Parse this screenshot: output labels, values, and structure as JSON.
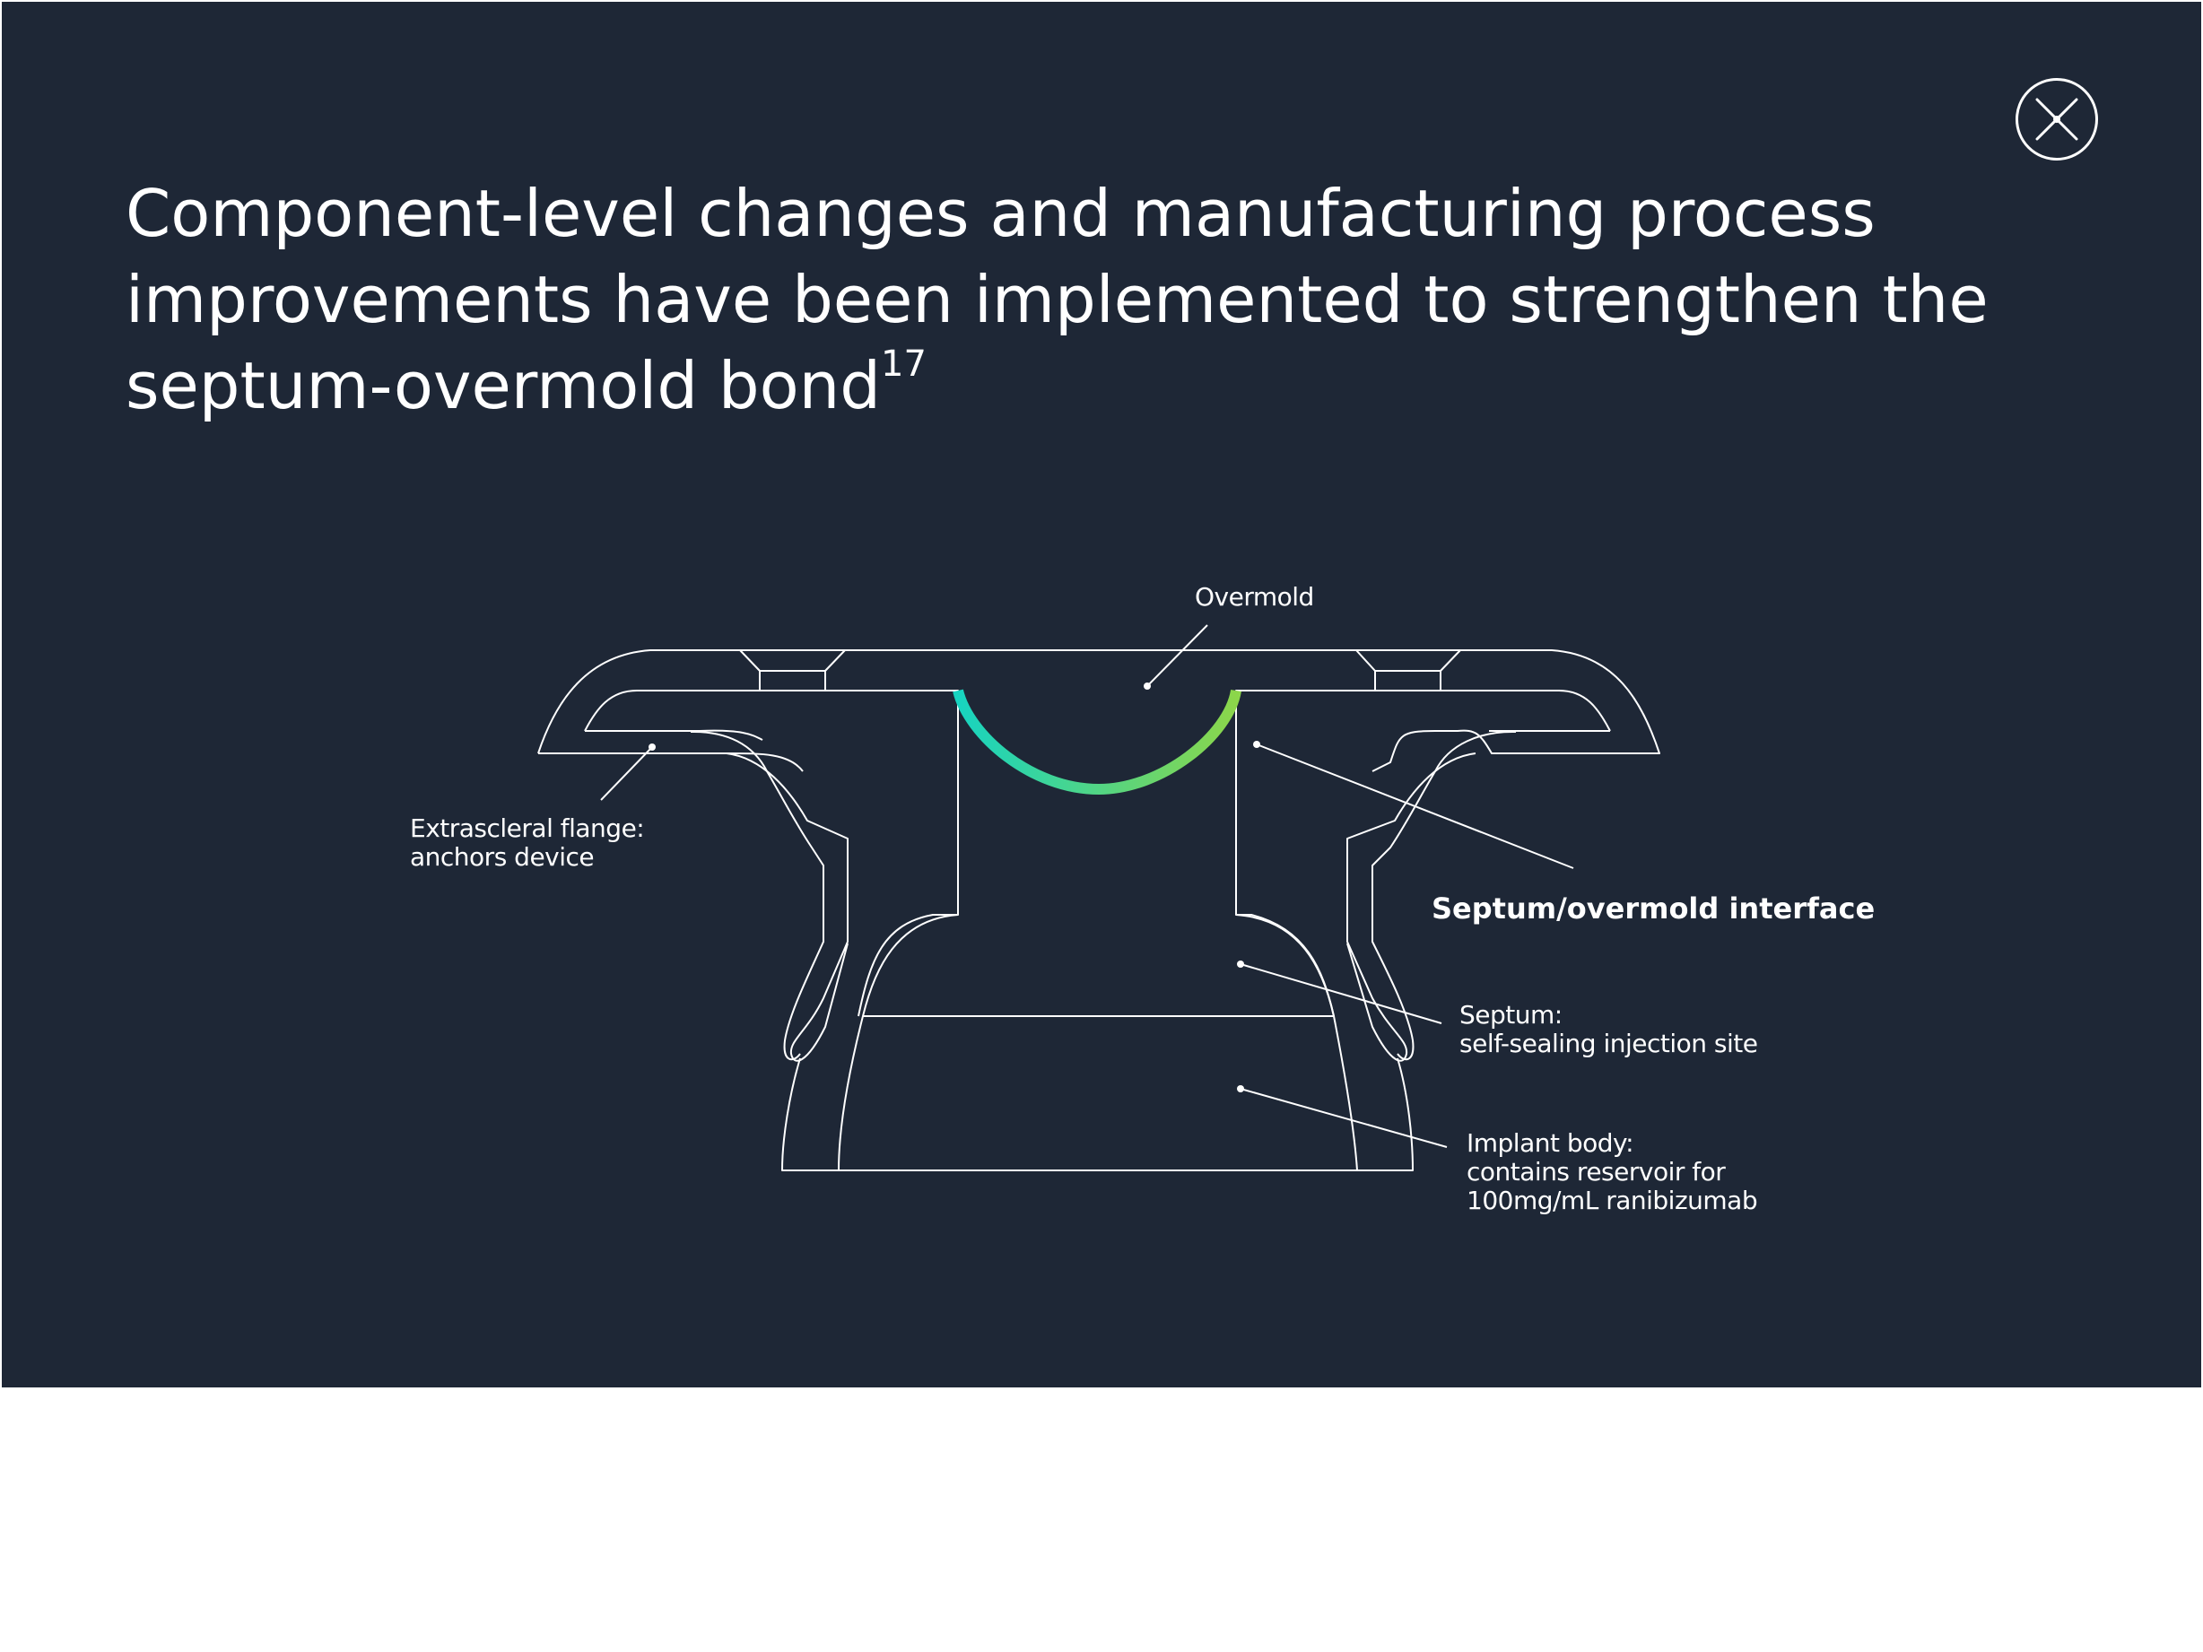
{
  "colors": {
    "background": "#1e2736",
    "line": "#ffffff",
    "highlight_gradient": [
      "#17d4c0",
      "#8cd64a"
    ]
  },
  "close": {
    "icon": "close-icon"
  },
  "title": {
    "text": "Component-level changes and manufacturing process improvements have been implemented to strengthen the septum-overmold bond",
    "superscript": "17"
  },
  "labels": {
    "overmold": "Overmold",
    "flange": [
      "Extrascleral flange:",
      "anchors device"
    ],
    "interface": "Septum/overmold interface",
    "septum": [
      "Septum:",
      "self-sealing injection site"
    ],
    "implant_body": [
      "Implant body:",
      "contains reservoir for",
      "100mg/mL ranibizumab"
    ]
  }
}
